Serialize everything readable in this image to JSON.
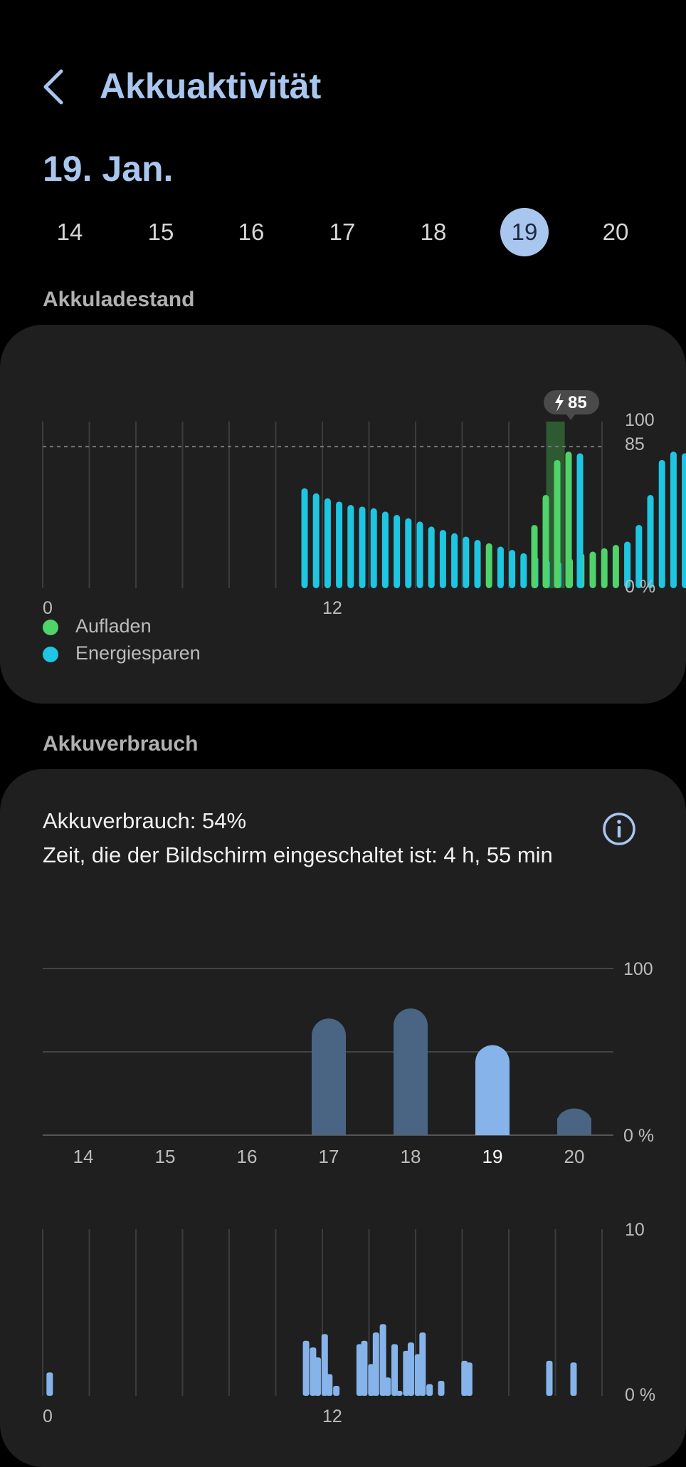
{
  "header": {
    "title": "Akkuaktivität",
    "date": "19. Jan."
  },
  "days": {
    "items": [
      "14",
      "15",
      "16",
      "17",
      "18",
      "19",
      "20"
    ],
    "selected": "19"
  },
  "battery_level": {
    "section_title": "Akkuladestand",
    "tooltip": "85",
    "ytick_top": "100",
    "ytick_mid": "85",
    "ytick_bottom": "0 %",
    "xtick_0": "0",
    "xtick_12": "12",
    "legend": {
      "charging": "Aufladen",
      "saving": "Energiesparen"
    }
  },
  "usage": {
    "section_title": "Akkuverbrauch",
    "usage_line": "Akkuverbrauch: 54%",
    "screen_line": "Zeit, die der Bildschirm eingeschaltet ist: 4 h, 55 min",
    "daily_ytick_top": "100",
    "daily_ytick_bottom": "0 %",
    "hourly_ytick_top": "10",
    "hourly_ytick_bottom": "0 %",
    "hourly_xtick_0": "0",
    "hourly_xtick_12": "12"
  },
  "colors": {
    "accent": "#a9c6ee",
    "charging": "#4fd36a",
    "saving": "#1ec6e2",
    "charge_band": "#2e5a32",
    "daily_bar": "#4a6483",
    "daily_bar_selected": "#86b4ea",
    "hourly_bar": "#86b4ea"
  },
  "chart_data": [
    {
      "type": "bar",
      "title": "Akkuladestand",
      "ylim": [
        0,
        100
      ],
      "ref_line": 85,
      "x_unit": "hour",
      "x": [
        11.3,
        11.6,
        11.8,
        12.1,
        12.3,
        12.6,
        12.8,
        13.1,
        13.3,
        13.6,
        13.8,
        14.1,
        14.3,
        14.6,
        14.8,
        15.1,
        15.3,
        15.6,
        15.8,
        16.1,
        16.3,
        16.6,
        16.8,
        17.1,
        17.3,
        17.6,
        17.8,
        18.1,
        18.3,
        18.6,
        18.8,
        19.1,
        19.3,
        19.6,
        19.8,
        20.1,
        20.3,
        20.6,
        20.8
      ],
      "values": [
        60,
        57,
        54,
        52,
        50,
        49,
        48,
        46,
        44,
        42,
        40,
        37,
        35,
        33,
        31,
        29,
        27,
        25,
        23,
        21,
        19,
        17,
        16,
        18,
        21,
        22,
        24,
        26,
        28,
        38,
        56,
        77,
        82,
        81,
        0,
        0,
        0,
        0,
        0
      ],
      "series_of_bar": [
        "saving",
        "saving",
        "saving",
        "saving",
        "saving",
        "saving",
        "saving",
        "saving",
        "saving",
        "saving",
        "saving",
        "saving",
        "saving",
        "saving",
        "saving",
        "saving",
        "charging",
        "saving",
        "saving",
        "saving",
        "saving",
        "saving",
        "saving",
        "charging",
        "charging",
        "charging",
        "charging",
        "charging",
        "saving",
        "",
        "",
        "",
        "",
        "",
        "",
        "",
        "",
        "",
        ""
      ],
      "charging_window": [
        21.6,
        22.4
      ],
      "legend": [
        "Aufladen",
        "Energiesparen"
      ]
    },
    {
      "type": "bar",
      "title": "Akkuverbrauch",
      "categories": [
        "14",
        "15",
        "16",
        "17",
        "18",
        "19",
        "20"
      ],
      "values": [
        0,
        0,
        0,
        70,
        76,
        54,
        16
      ],
      "selected": "19",
      "ylim": [
        0,
        100
      ]
    },
    {
      "type": "bar",
      "x_unit": "hour",
      "ylim": [
        0,
        10
      ],
      "x": [
        0.3,
        11.3,
        11.6,
        11.8,
        12.1,
        12.3,
        12.6,
        13.6,
        13.8,
        14.1,
        14.3,
        14.6,
        14.8,
        15.1,
        15.3,
        15.6,
        15.8,
        16.1,
        16.3,
        16.6,
        17.1,
        17.6,
        18.1,
        18.3
      ],
      "values": [
        1.4,
        3.3,
        2.9,
        2.3,
        3.7,
        1.3,
        0.6,
        3.1,
        3.3,
        1.9,
        3.8,
        4.3,
        1.1,
        3.1,
        0.3,
        2.7,
        3.2,
        2.5,
        3.8,
        0.7,
        0.9,
        0,
        2.1,
        2.0
      ]
    }
  ]
}
